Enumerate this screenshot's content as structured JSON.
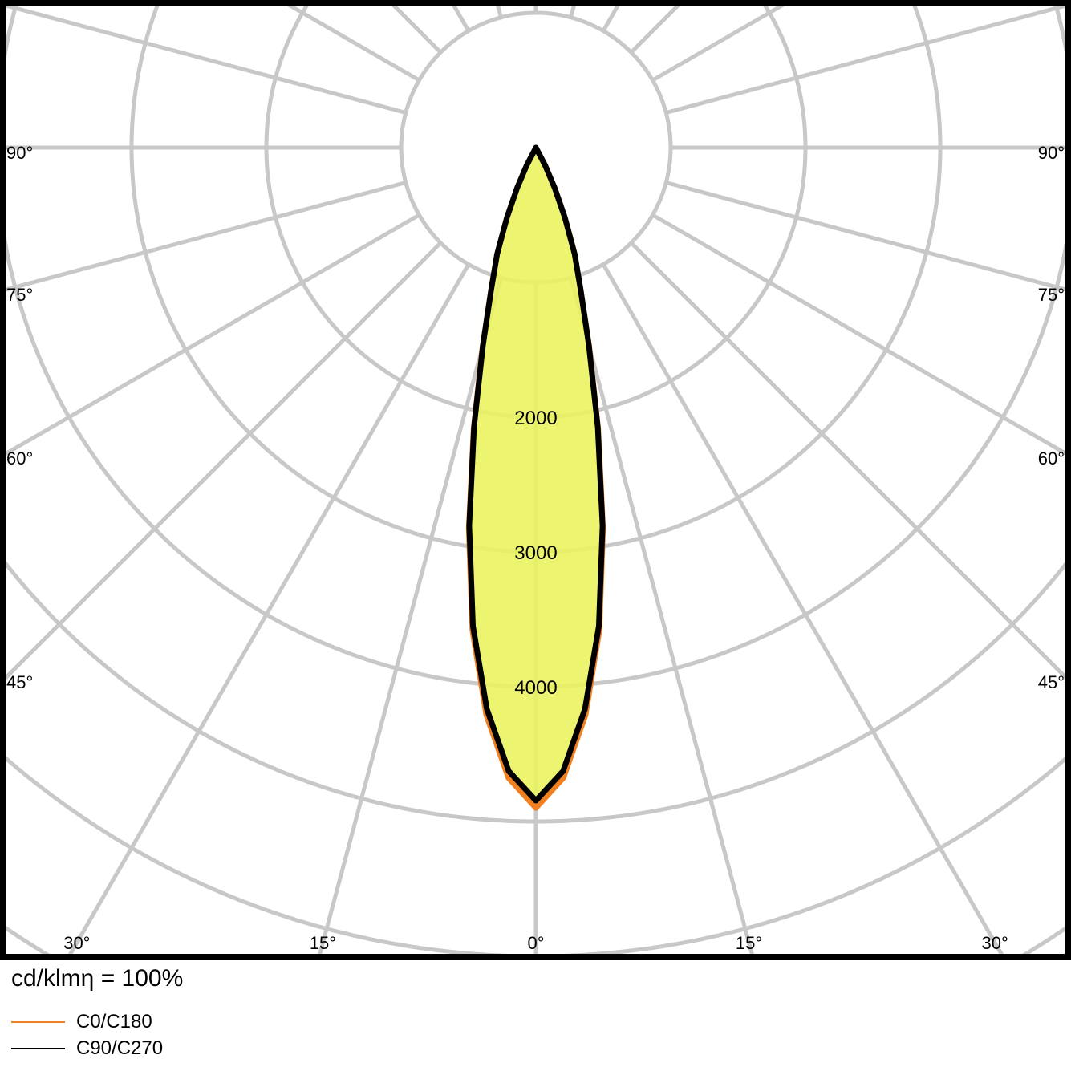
{
  "chart_data": {
    "type": "polar-line",
    "unit_label": "cd/klmη = 100%",
    "radial_axis": {
      "ring_step": 1000,
      "ring_labels": [
        "2000",
        "3000",
        "4000"
      ],
      "ring_label_values": [
        2000,
        3000,
        4000
      ]
    },
    "angular_axis": {
      "step_deg": 15,
      "side_labels": [
        "90°",
        "75°",
        "60°",
        "45°"
      ],
      "side_label_values": [
        90,
        75,
        60,
        45
      ],
      "bottom_labels": [
        "30°",
        "15°",
        "0°",
        "15°",
        "30°"
      ],
      "bottom_label_values": [
        -30,
        -15,
        0,
        15,
        30
      ]
    },
    "grid": true,
    "legend_placement": "bottom-left",
    "angles_deg": [
      0,
      2.5,
      5,
      7.5,
      10,
      12.5,
      15,
      17.5,
      20,
      22.5,
      25,
      27.5,
      30
    ],
    "series": [
      {
        "name": "C0/C180",
        "color": "#f08020",
        "values": [
          4900,
          4680,
          4225,
          3610,
          2870,
          2135,
          1530,
          1105,
          842,
          562,
          330,
          150,
          0
        ]
      },
      {
        "name": "C90/C270",
        "color": "#000000",
        "values": [
          4845,
          4630,
          4180,
          3580,
          2850,
          2120,
          1520,
          1100,
          840,
          560,
          330,
          150,
          0
        ]
      }
    ],
    "fill_color": "#eaf25c",
    "grid_color": "#c8c8c8"
  }
}
